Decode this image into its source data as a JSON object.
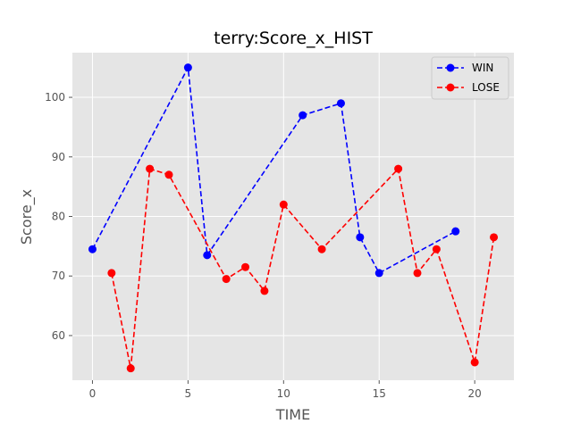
{
  "chart_data": {
    "type": "line",
    "title": "terry:Score_x_HIST",
    "xlabel": "TIME",
    "ylabel": "Score_x",
    "xlim": [
      -1.05,
      22.05
    ],
    "ylim": [
      52.5,
      107.5
    ],
    "xticks": [
      0,
      5,
      10,
      15,
      20
    ],
    "yticks": [
      60,
      70,
      80,
      90,
      100
    ],
    "grid": true,
    "legend_position": "top-right",
    "series": [
      {
        "name": "WIN",
        "color": "#0000ff",
        "linestyle": "dashed",
        "marker": "circle",
        "x": [
          0,
          5,
          6,
          11,
          13,
          14,
          15,
          19
        ],
        "y": [
          74.5,
          105,
          73.5,
          97,
          99,
          76.5,
          70.5,
          77.5
        ]
      },
      {
        "name": "LOSE",
        "color": "#ff0000",
        "linestyle": "dashed",
        "marker": "circle",
        "x": [
          1,
          2,
          3,
          4,
          7,
          8,
          9,
          10,
          12,
          16,
          17,
          18,
          20,
          21
        ],
        "y": [
          70.5,
          54.5,
          88,
          87,
          69.5,
          71.5,
          67.5,
          82,
          74.5,
          88,
          70.5,
          74.5,
          55.5,
          76.5
        ]
      }
    ]
  }
}
